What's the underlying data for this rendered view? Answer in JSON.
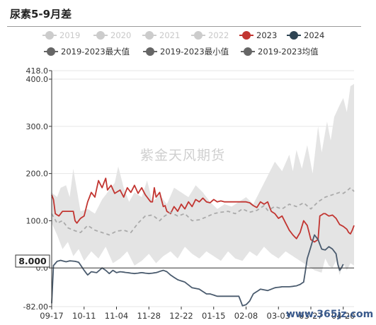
{
  "title": "尿素5-9月差",
  "legend": [
    {
      "label": "2019",
      "color": "#cccccc",
      "muted": true
    },
    {
      "label": "2020",
      "color": "#cccccc",
      "muted": true
    },
    {
      "label": "2021",
      "color": "#cccccc",
      "muted": true
    },
    {
      "label": "2022",
      "color": "#cccccc",
      "muted": true
    },
    {
      "label": "2023",
      "color": "#c23531",
      "muted": false
    },
    {
      "label": "2024",
      "color": "#2f4554",
      "muted": false
    },
    {
      "label": "2019-2023最大值",
      "color": "#666666",
      "muted": false
    },
    {
      "label": "2019-2023最小值",
      "color": "#666666",
      "muted": false
    },
    {
      "label": "2019-2023均值",
      "color": "#666666",
      "muted": false
    }
  ],
  "watermark": "紫金天风期货",
  "watermark_url": "www.365jz.com",
  "tooltip_value": "8.000",
  "chart_data": {
    "type": "line",
    "title": "尿素5-9月差",
    "xlabel": "",
    "ylabel": "",
    "ylim": [
      -82,
      418
    ],
    "y_ticks": [
      "418.0",
      "400.0",
      "300.0",
      "200.0",
      "100.0",
      "0.0",
      "-82.00"
    ],
    "y_tick_values": [
      418,
      400,
      300,
      200,
      100,
      0,
      -82
    ],
    "x_ticks": [
      "09-17",
      "10-11",
      "11-04",
      "11-28",
      "12-22",
      "01-15",
      "02-08",
      "03-03",
      "03-27",
      "04-20"
    ],
    "x_tick_index": [
      0,
      18,
      36,
      54,
      72,
      90,
      108,
      126,
      144,
      162
    ],
    "x_count": 169,
    "grid": true,
    "legend_position": "top",
    "range_band": {
      "name": "2019-2023最大值 / 2019-2023最小值",
      "color": "#e4e4e4",
      "max_keys": [
        [
          0,
          160
        ],
        [
          3,
          150
        ],
        [
          5,
          170
        ],
        [
          8,
          175
        ],
        [
          10,
          150
        ],
        [
          12,
          210
        ],
        [
          16,
          120
        ],
        [
          20,
          125
        ],
        [
          24,
          115
        ],
        [
          28,
          145
        ],
        [
          32,
          165
        ],
        [
          35,
          180
        ],
        [
          37,
          215
        ],
        [
          40,
          170
        ],
        [
          43,
          140
        ],
        [
          46,
          160
        ],
        [
          50,
          150
        ],
        [
          53,
          185
        ],
        [
          56,
          140
        ],
        [
          60,
          155
        ],
        [
          64,
          135
        ],
        [
          68,
          170
        ],
        [
          72,
          160
        ],
        [
          76,
          150
        ],
        [
          80,
          175
        ],
        [
          84,
          160
        ],
        [
          88,
          140
        ],
        [
          92,
          125
        ],
        [
          96,
          135
        ],
        [
          100,
          130
        ],
        [
          104,
          140
        ],
        [
          108,
          150
        ],
        [
          112,
          135
        ],
        [
          116,
          165
        ],
        [
          120,
          195
        ],
        [
          124,
          225
        ],
        [
          128,
          205
        ],
        [
          132,
          240
        ],
        [
          134,
          205
        ],
        [
          136,
          250
        ],
        [
          139,
          210
        ],
        [
          142,
          260
        ],
        [
          145,
          200
        ],
        [
          148,
          300
        ],
        [
          150,
          245
        ],
        [
          153,
          310
        ],
        [
          155,
          270
        ],
        [
          157,
          320
        ],
        [
          160,
          345
        ],
        [
          162,
          360
        ],
        [
          164,
          330
        ],
        [
          166,
          385
        ],
        [
          168,
          390
        ]
      ],
      "min_keys": [
        [
          0,
          95
        ],
        [
          3,
          70
        ],
        [
          6,
          40
        ],
        [
          9,
          55
        ],
        [
          12,
          25
        ],
        [
          15,
          40
        ],
        [
          18,
          15
        ],
        [
          22,
          35
        ],
        [
          26,
          20
        ],
        [
          30,
          45
        ],
        [
          34,
          10
        ],
        [
          38,
          20
        ],
        [
          42,
          35
        ],
        [
          46,
          5
        ],
        [
          50,
          15
        ],
        [
          54,
          30
        ],
        [
          58,
          10
        ],
        [
          62,
          25
        ],
        [
          66,
          35
        ],
        [
          70,
          20
        ],
        [
          74,
          45
        ],
        [
          78,
          30
        ],
        [
          82,
          20
        ],
        [
          86,
          35
        ],
        [
          90,
          25
        ],
        [
          94,
          15
        ],
        [
          98,
          35
        ],
        [
          102,
          20
        ],
        [
          106,
          15
        ],
        [
          110,
          35
        ],
        [
          114,
          25
        ],
        [
          118,
          45
        ],
        [
          122,
          30
        ],
        [
          126,
          20
        ],
        [
          130,
          35
        ],
        [
          134,
          25
        ],
        [
          138,
          15
        ],
        [
          142,
          5
        ],
        [
          146,
          -5
        ],
        [
          150,
          -10
        ],
        [
          152,
          20
        ],
        [
          154,
          5
        ],
        [
          156,
          0
        ],
        [
          158,
          15
        ],
        [
          160,
          -15
        ],
        [
          162,
          10
        ],
        [
          164,
          -5
        ],
        [
          166,
          10
        ],
        [
          168,
          5
        ]
      ]
    },
    "series": [
      {
        "name": "2023",
        "color": "#c23531",
        "style": "solid",
        "keys": [
          [
            0,
            155
          ],
          [
            1,
            145
          ],
          [
            2,
            115
          ],
          [
            4,
            110
          ],
          [
            6,
            120
          ],
          [
            12,
            120
          ],
          [
            13,
            100
          ],
          [
            14,
            95
          ],
          [
            16,
            105
          ],
          [
            18,
            110
          ],
          [
            20,
            140
          ],
          [
            22,
            160
          ],
          [
            24,
            150
          ],
          [
            26,
            185
          ],
          [
            28,
            170
          ],
          [
            30,
            190
          ],
          [
            31,
            165
          ],
          [
            33,
            175
          ],
          [
            35,
            158
          ],
          [
            38,
            165
          ],
          [
            40,
            150
          ],
          [
            42,
            170
          ],
          [
            44,
            160
          ],
          [
            46,
            175
          ],
          [
            48,
            158
          ],
          [
            50,
            170
          ],
          [
            52,
            155
          ],
          [
            53,
            150
          ],
          [
            55,
            140
          ],
          [
            56,
            140
          ],
          [
            57,
            170
          ],
          [
            58,
            150
          ],
          [
            60,
            160
          ],
          [
            62,
            130
          ],
          [
            63,
            132
          ],
          [
            64,
            120
          ],
          [
            66,
            115
          ],
          [
            68,
            130
          ],
          [
            70,
            120
          ],
          [
            72,
            135
          ],
          [
            74,
            125
          ],
          [
            76,
            140
          ],
          [
            78,
            130
          ],
          [
            80,
            145
          ],
          [
            82,
            140
          ],
          [
            84,
            148
          ],
          [
            86,
            140
          ],
          [
            88,
            138
          ],
          [
            90,
            145
          ],
          [
            92,
            140
          ],
          [
            94,
            142
          ],
          [
            96,
            140
          ],
          [
            100,
            140
          ],
          [
            104,
            140
          ],
          [
            108,
            140
          ],
          [
            110,
            138
          ],
          [
            112,
            132
          ],
          [
            114,
            128
          ],
          [
            116,
            140
          ],
          [
            118,
            135
          ],
          [
            120,
            140
          ],
          [
            122,
            120
          ],
          [
            124,
            115
          ],
          [
            126,
            105
          ],
          [
            128,
            110
          ],
          [
            130,
            95
          ],
          [
            132,
            80
          ],
          [
            134,
            70
          ],
          [
            136,
            62
          ],
          [
            138,
            75
          ],
          [
            140,
            100
          ],
          [
            142,
            90
          ],
          [
            144,
            60
          ],
          [
            146,
            55
          ],
          [
            148,
            60
          ],
          [
            149,
            110
          ],
          [
            151,
            115
          ],
          [
            152,
            115
          ],
          [
            154,
            110
          ],
          [
            156,
            112
          ],
          [
            158,
            105
          ],
          [
            160,
            92
          ],
          [
            162,
            88
          ],
          [
            164,
            82
          ],
          [
            165,
            75
          ],
          [
            166,
            72
          ],
          [
            167,
            80
          ],
          [
            168,
            90
          ]
        ]
      },
      {
        "name": "2024",
        "color": "#4a5b6e",
        "style": "solid",
        "keys": [
          [
            0,
            -75
          ],
          [
            1,
            5
          ],
          [
            3,
            14
          ],
          [
            5,
            16
          ],
          [
            8,
            13
          ],
          [
            10,
            15
          ],
          [
            13,
            14
          ],
          [
            15,
            12
          ],
          [
            18,
            -5
          ],
          [
            20,
            -15
          ],
          [
            22,
            -8
          ],
          [
            25,
            -10
          ],
          [
            28,
            0
          ],
          [
            30,
            -5
          ],
          [
            32,
            -12
          ],
          [
            34,
            -5
          ],
          [
            36,
            -10
          ],
          [
            38,
            -8
          ],
          [
            42,
            -10
          ],
          [
            46,
            -12
          ],
          [
            50,
            -10
          ],
          [
            54,
            -12
          ],
          [
            58,
            -10
          ],
          [
            62,
            -5
          ],
          [
            64,
            -8
          ],
          [
            66,
            -15
          ],
          [
            68,
            -20
          ],
          [
            70,
            -25
          ],
          [
            74,
            -30
          ],
          [
            78,
            -42
          ],
          [
            82,
            -45
          ],
          [
            86,
            -55
          ],
          [
            88,
            -55
          ],
          [
            92,
            -60
          ],
          [
            96,
            -60
          ],
          [
            100,
            -60
          ],
          [
            104,
            -60
          ],
          [
            106,
            -80
          ],
          [
            108,
            -78
          ],
          [
            110,
            -70
          ],
          [
            112,
            -55
          ],
          [
            116,
            -45
          ],
          [
            120,
            -48
          ],
          [
            124,
            -42
          ],
          [
            128,
            -40
          ],
          [
            132,
            -40
          ],
          [
            136,
            -38
          ],
          [
            138,
            -35
          ],
          [
            140,
            -30
          ],
          [
            142,
            20
          ],
          [
            144,
            45
          ],
          [
            146,
            70
          ],
          [
            148,
            60
          ],
          [
            150,
            40
          ],
          [
            152,
            38
          ],
          [
            154,
            45
          ],
          [
            156,
            40
          ],
          [
            158,
            30
          ],
          [
            159,
            8
          ],
          [
            160,
            -5
          ],
          [
            161,
            0
          ],
          [
            162,
            8
          ]
        ]
      },
      {
        "name": "2019-2023均值",
        "color": "#aaaaaa",
        "style": "dashed",
        "keys": [
          [
            0,
            115
          ],
          [
            3,
            95
          ],
          [
            6,
            100
          ],
          [
            9,
            85
          ],
          [
            12,
            80
          ],
          [
            16,
            75
          ],
          [
            20,
            90
          ],
          [
            24,
            80
          ],
          [
            28,
            75
          ],
          [
            32,
            70
          ],
          [
            36,
            78
          ],
          [
            40,
            80
          ],
          [
            44,
            75
          ],
          [
            48,
            95
          ],
          [
            52,
            110
          ],
          [
            56,
            112
          ],
          [
            60,
            100
          ],
          [
            62,
            108
          ],
          [
            66,
            118
          ],
          [
            70,
            110
          ],
          [
            74,
            115
          ],
          [
            78,
            100
          ],
          [
            82,
            102
          ],
          [
            86,
            108
          ],
          [
            90,
            115
          ],
          [
            94,
            118
          ],
          [
            98,
            120
          ],
          [
            102,
            115
          ],
          [
            106,
            125
          ],
          [
            110,
            118
          ],
          [
            114,
            122
          ],
          [
            118,
            132
          ],
          [
            120,
            122
          ],
          [
            124,
            130
          ],
          [
            128,
            125
          ],
          [
            132,
            135
          ],
          [
            136,
            130
          ],
          [
            140,
            138
          ],
          [
            144,
            125
          ],
          [
            148,
            140
          ],
          [
            152,
            150
          ],
          [
            156,
            155
          ],
          [
            160,
            160
          ],
          [
            162,
            158
          ],
          [
            164,
            163
          ],
          [
            166,
            170
          ],
          [
            168,
            162
          ]
        ]
      }
    ]
  }
}
